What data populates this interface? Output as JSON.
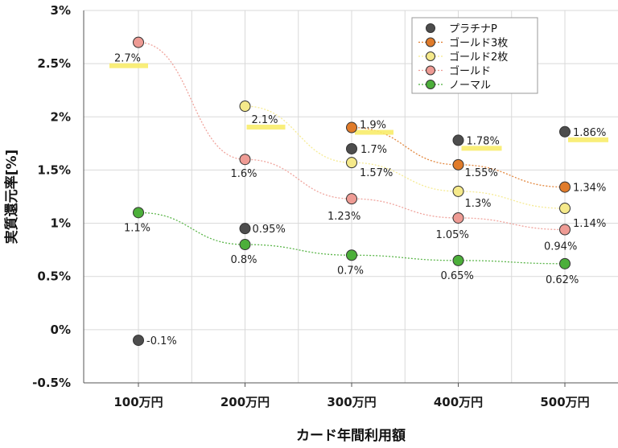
{
  "chart_data": {
    "type": "scatter",
    "xlabel": "カード年間利用額",
    "ylabel": "実質還元率[%]",
    "categories": [
      "100万円",
      "200万円",
      "300万円",
      "400万円",
      "500万円"
    ],
    "y_ticks": [
      "-0.5%",
      "0%",
      "0.5%",
      "1%",
      "1.5%",
      "2%",
      "2.5%",
      "3%"
    ],
    "ylim": [
      -0.5,
      3
    ],
    "grid": true,
    "legend_position": "top-right",
    "series": [
      {
        "name": "プラチナP",
        "color": "#4d4d4d",
        "trendline": false,
        "values": [
          -0.1,
          0.95,
          1.7,
          1.78,
          1.86
        ],
        "labels": [
          "-0.1%",
          "0.95%",
          "1.7%",
          "1.78%",
          "1.86%"
        ],
        "highlighted": [
          false,
          false,
          false,
          true,
          true
        ]
      },
      {
        "name": "ゴールド3枚",
        "color": "#e07b2a",
        "trendline": true,
        "values": [
          null,
          null,
          1.9,
          1.55,
          1.34
        ],
        "labels": [
          "",
          "",
          "1.9%",
          "1.55%",
          "1.34%"
        ],
        "highlighted": [
          false,
          false,
          true,
          false,
          false
        ]
      },
      {
        "name": "ゴールド2枚",
        "color": "#f5e98a",
        "trendline": true,
        "values": [
          null,
          2.1,
          1.57,
          1.3,
          1.14
        ],
        "labels": [
          "",
          "2.1%",
          "1.57%",
          "1.3%",
          "1.14%"
        ],
        "highlighted": [
          false,
          true,
          false,
          false,
          false
        ]
      },
      {
        "name": "ゴールド",
        "color": "#ee9b94",
        "trendline": true,
        "values": [
          2.7,
          1.6,
          1.23,
          1.05,
          0.94
        ],
        "labels": [
          "2.7%",
          "1.6%",
          "1.23%",
          "1.05%",
          "0.94%"
        ],
        "highlighted": [
          true,
          false,
          false,
          false,
          false
        ]
      },
      {
        "name": "ノーマル",
        "color": "#4caf3a",
        "trendline": true,
        "values": [
          1.1,
          0.8,
          0.7,
          0.65,
          0.62
        ],
        "labels": [
          "1.1%",
          "0.8%",
          "0.7%",
          "0.65%",
          "0.62%"
        ],
        "highlighted": [
          false,
          false,
          false,
          false,
          false
        ]
      }
    ]
  }
}
